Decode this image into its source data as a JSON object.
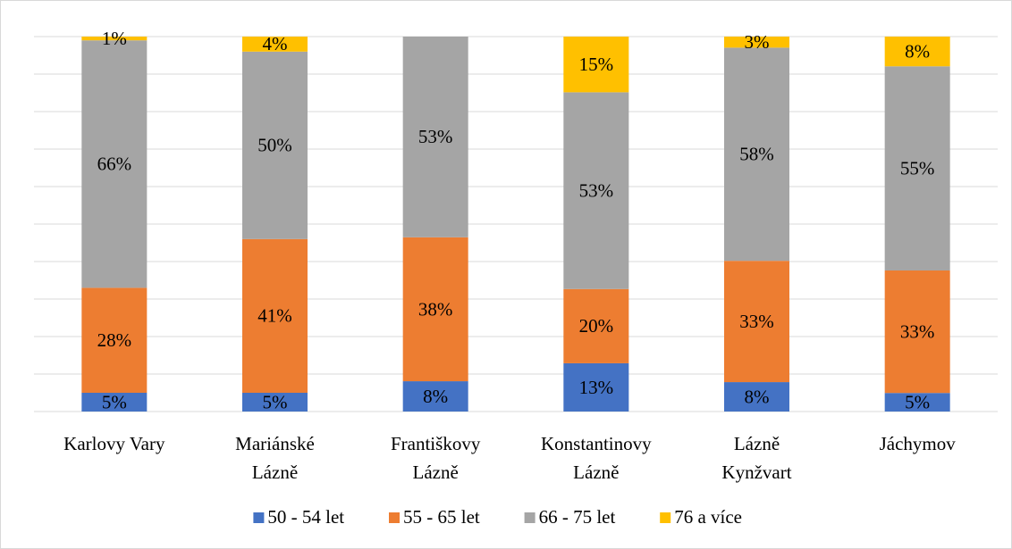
{
  "chart_data": {
    "type": "stacked_bar_100",
    "categories": [
      "Karlovy Vary",
      "Mariánské\nLázně",
      "Františkovy\nLázně",
      "Konstantinovy\nLázně",
      "Lázně\nKynžvart",
      "Jáchymov"
    ],
    "series": [
      {
        "name": "50 - 54 let",
        "color": "#4472c4",
        "values": [
          5,
          5,
          8,
          13,
          8,
          5
        ],
        "value_labels": [
          "5%",
          "5%",
          "8%",
          "13%",
          "8%",
          "5%"
        ]
      },
      {
        "name": "55 - 65 let",
        "color": "#ed7d31",
        "values": [
          28,
          41,
          38,
          20,
          33,
          33
        ],
        "value_labels": [
          "28%",
          "41%",
          "38%",
          "20%",
          "33%",
          "33%"
        ]
      },
      {
        "name": "66 - 75 let",
        "color": "#a5a5a5",
        "values": [
          66,
          50,
          53,
          53,
          58,
          55
        ],
        "value_labels": [
          "66%",
          "50%",
          "53%",
          "53%",
          "58%",
          "55%"
        ]
      },
      {
        "name": "76 a více",
        "color": "#ffc000",
        "values": [
          1,
          4,
          null,
          15,
          3,
          8
        ],
        "value_labels": [
          "1%",
          "4%",
          null,
          "15%",
          "3%",
          "8%"
        ]
      }
    ],
    "ylim": [
      0,
      100
    ],
    "yticks": [
      0,
      10,
      20,
      30,
      40,
      50,
      60,
      70,
      80,
      90,
      100
    ],
    "grid": true,
    "ytick_labels": false,
    "legend": "bottom"
  }
}
